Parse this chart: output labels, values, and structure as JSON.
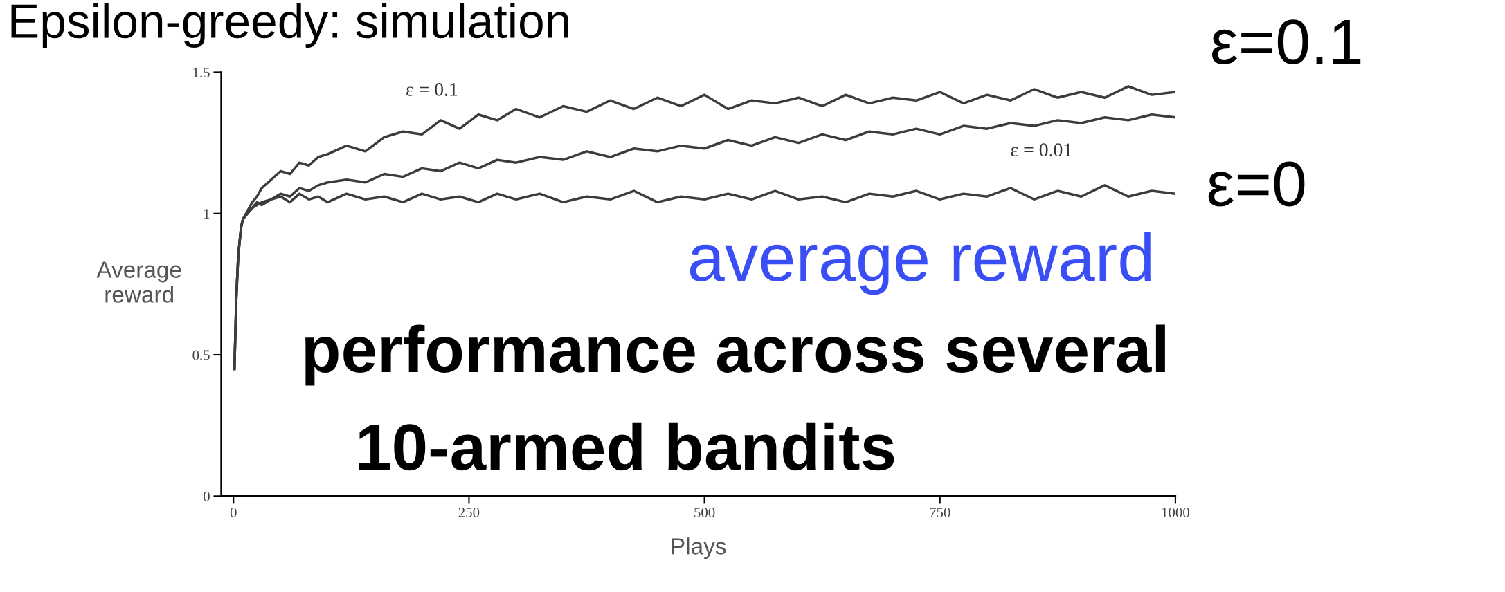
{
  "chart_data": {
    "type": "line",
    "title": "Epsilon-greedy: simulation",
    "xlabel": "Plays",
    "ylabel": "Average\nreward",
    "x": [
      1,
      3,
      5,
      8,
      10,
      15,
      20,
      25,
      30,
      40,
      50,
      60,
      70,
      80,
      90,
      100,
      120,
      140,
      160,
      180,
      200,
      220,
      240,
      260,
      280,
      300,
      325,
      350,
      375,
      400,
      425,
      450,
      475,
      500,
      525,
      550,
      575,
      600,
      625,
      650,
      675,
      700,
      725,
      750,
      775,
      800,
      825,
      850,
      875,
      900,
      925,
      950,
      975,
      1000
    ],
    "series": [
      {
        "color": "#3c3c3c",
        "values": [
          0.45,
          0.7,
          0.85,
          0.95,
          0.98,
          1.01,
          1.04,
          1.06,
          1.09,
          1.12,
          1.15,
          1.14,
          1.18,
          1.17,
          1.2,
          1.21,
          1.24,
          1.22,
          1.27,
          1.29,
          1.28,
          1.33,
          1.3,
          1.35,
          1.33,
          1.37,
          1.34,
          1.38,
          1.36,
          1.4,
          1.37,
          1.41,
          1.38,
          1.42,
          1.37,
          1.4,
          1.39,
          1.41,
          1.38,
          1.42,
          1.39,
          1.41,
          1.4,
          1.43,
          1.39,
          1.42,
          1.4,
          1.44,
          1.41,
          1.43,
          1.41,
          1.45,
          1.42,
          1.43
        ]
      },
      {
        "color": "#3c3c3c",
        "values": [
          0.45,
          0.7,
          0.85,
          0.95,
          0.98,
          1.0,
          1.02,
          1.03,
          1.04,
          1.05,
          1.07,
          1.06,
          1.09,
          1.08,
          1.1,
          1.11,
          1.12,
          1.11,
          1.14,
          1.13,
          1.16,
          1.15,
          1.18,
          1.16,
          1.19,
          1.18,
          1.2,
          1.19,
          1.22,
          1.2,
          1.23,
          1.22,
          1.24,
          1.23,
          1.26,
          1.24,
          1.27,
          1.25,
          1.28,
          1.26,
          1.29,
          1.28,
          1.3,
          1.28,
          1.31,
          1.3,
          1.32,
          1.31,
          1.33,
          1.32,
          1.34,
          1.33,
          1.35,
          1.34
        ]
      },
      {
        "color": "#3c3c3c",
        "values": [
          0.45,
          0.7,
          0.85,
          0.95,
          0.98,
          1.0,
          1.02,
          1.04,
          1.03,
          1.05,
          1.06,
          1.04,
          1.07,
          1.05,
          1.06,
          1.04,
          1.07,
          1.05,
          1.06,
          1.04,
          1.07,
          1.05,
          1.06,
          1.04,
          1.07,
          1.05,
          1.07,
          1.04,
          1.06,
          1.05,
          1.08,
          1.04,
          1.06,
          1.05,
          1.07,
          1.05,
          1.08,
          1.05,
          1.06,
          1.04,
          1.07,
          1.06,
          1.08,
          1.05,
          1.07,
          1.06,
          1.09,
          1.05,
          1.08,
          1.06,
          1.1,
          1.06,
          1.08,
          1.07
        ]
      }
    ],
    "xlim": [
      -13,
      1000
    ],
    "ylim": [
      0,
      1.5
    ],
    "xticks": [
      0,
      250,
      500,
      750,
      1000
    ],
    "yticks": [
      0,
      0.5,
      1,
      1.5
    ],
    "grid": false,
    "legend": false,
    "annotations": [
      "ε = 0.1",
      "ε = 0.01",
      "ε=0.1",
      "ε=0",
      "average reward",
      "performance across several",
      "10-armed bandits"
    ]
  }
}
